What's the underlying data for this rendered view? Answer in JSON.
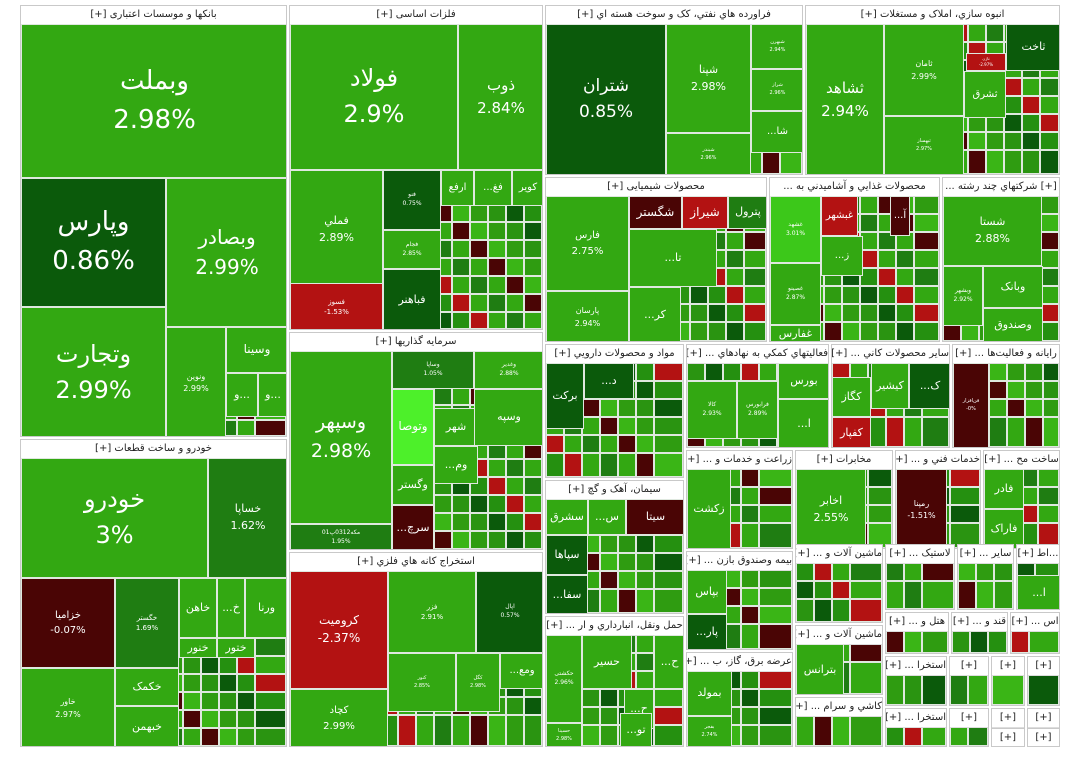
{
  "colors": {
    "up": "#33a812",
    "upLight": "#3cc81a",
    "upDark": "#0b5a0b",
    "upMid": "#1f7d12",
    "down": "#b31212",
    "downDark": "#4a0505",
    "bright": "#4df02a"
  },
  "sectors": [
    {
      "id": "banks",
      "title": "بانکها و موسسات اعتباری [+]",
      "stocks": [
        {
          "name": "وبملت",
          "pct": "2.98%",
          "t": "up"
        },
        {
          "name": "وپارس",
          "pct": "0.86%",
          "t": "upDark"
        },
        {
          "name": "وبصادر",
          "pct": "2.99%",
          "t": "up"
        },
        {
          "name": "وتجارت",
          "pct": "2.99%",
          "t": "up"
        },
        {
          "name": "ونوین",
          "pct": "2.99%",
          "t": "up"
        },
        {
          "name": "وسینا",
          "pct": "",
          "t": "up"
        },
        {
          "name": "و...",
          "pct": "",
          "t": "up"
        },
        {
          "name": "و...",
          "pct": "",
          "t": "up"
        }
      ]
    },
    {
      "id": "metals",
      "title": "فلزات اساسی [+]",
      "stocks": [
        {
          "name": "فولاد",
          "pct": "2.9%",
          "t": "up"
        },
        {
          "name": "ذوب",
          "pct": "2.84%",
          "t": "up"
        },
        {
          "name": "فملي",
          "pct": "2.89%",
          "t": "up"
        },
        {
          "name": "فنو",
          "pct": "0.75%",
          "t": "upDark"
        },
        {
          "name": "ارفع",
          "pct": "",
          "t": "up"
        },
        {
          "name": "...فغ",
          "pct": "",
          "t": "up"
        },
        {
          "name": "کویر",
          "pct": "",
          "t": "up"
        },
        {
          "name": "فجام",
          "pct": "2.85%",
          "t": "up"
        },
        {
          "name": "فسوز",
          "pct": "-1.53%",
          "t": "down"
        },
        {
          "name": "فباهنر",
          "pct": "",
          "t": "upDark"
        }
      ]
    },
    {
      "id": "oil",
      "title": "فراورده هاي نفتي، کک و سوخت هسته اي [+]",
      "stocks": [
        {
          "name": "شتران",
          "pct": "0.85%",
          "t": "upDark"
        },
        {
          "name": "شپنا",
          "pct": "2.98%",
          "t": "up"
        },
        {
          "name": "شبهرن",
          "pct": "2.94%",
          "t": "up"
        },
        {
          "name": "شراز",
          "pct": "2.96%",
          "t": "up"
        },
        {
          "name": "...شا",
          "pct": "",
          "t": "up"
        },
        {
          "name": "شبندر",
          "pct": "2.96%",
          "t": "up"
        }
      ]
    },
    {
      "id": "construction",
      "title": "انبوه سازي، املاک و مستغلات [+]",
      "stocks": [
        {
          "name": "ثشاهد",
          "pct": "2.94%",
          "t": "up"
        },
        {
          "name": "ثاخت",
          "pct": "",
          "t": "upDark"
        },
        {
          "name": "ثامان",
          "pct": "2.99%",
          "t": "up"
        },
        {
          "name": "ثاژن",
          "pct": "-2.97%",
          "t": "down"
        },
        {
          "name": "ثشرق",
          "pct": "",
          "t": "up"
        },
        {
          "name": "ثبهساز",
          "pct": "2.97%",
          "t": "up"
        }
      ]
    },
    {
      "id": "chemicals",
      "title": "محصولات شیمیایی [+]",
      "stocks": [
        {
          "name": "فارس",
          "pct": "2.75%",
          "t": "up"
        },
        {
          "name": "شگستر",
          "pct": "",
          "t": "downDark"
        },
        {
          "name": "شیراز",
          "pct": "",
          "t": "down"
        },
        {
          "name": "پترول",
          "pct": "",
          "t": "upMid"
        },
        {
          "name": "پارسان",
          "pct": "2.94%",
          "t": "up"
        },
        {
          "name": "...تا",
          "pct": "",
          "t": "up"
        },
        {
          "name": "...کر",
          "pct": "",
          "t": "up"
        }
      ]
    },
    {
      "id": "food",
      "title": "محصولات غذايي و آشاميدني به ...",
      "stocks": [
        {
          "name": "غشهد",
          "pct": "3.01%",
          "t": "upLight"
        },
        {
          "name": "غبشهر",
          "pct": "",
          "t": "down"
        },
        {
          "name": "...آ",
          "pct": "",
          "t": "downDark"
        },
        {
          "name": "غصینو",
          "pct": "2.87%",
          "t": "up"
        },
        {
          "name": "...ز",
          "pct": "",
          "t": "up"
        },
        {
          "name": "غفارس",
          "pct": "",
          "t": "up"
        }
      ]
    },
    {
      "id": "multi",
      "title": "[+] شرکتهاي چند رشته ...",
      "stocks": [
        {
          "name": "شستا",
          "pct": "2.88%",
          "t": "up"
        },
        {
          "name": "وبانک",
          "pct": "",
          "t": "up"
        },
        {
          "name": "وبشهر",
          "pct": "2.92%",
          "t": "up"
        },
        {
          "name": "وصندوق",
          "pct": "",
          "t": "up"
        }
      ]
    },
    {
      "id": "pharma",
      "title": "مواد و محصولات دارويي [+]",
      "stocks": [
        {
          "name": "برکت",
          "pct": "",
          "t": "upDark"
        },
        {
          "name": "...د",
          "pct": "",
          "t": "upDark"
        }
      ]
    },
    {
      "id": "aux",
      "title": "فعاليتهاي کمکي به نهادهاي ... [+]",
      "stocks": [
        {
          "name": "بورس",
          "pct": "",
          "t": "up"
        },
        {
          "name": "کالا",
          "pct": "2.93%",
          "t": "up"
        },
        {
          "name": "فرابورس",
          "pct": "2.89%",
          "t": "up"
        },
        {
          "name": "...ا",
          "pct": "",
          "t": "up"
        }
      ]
    },
    {
      "id": "minerals",
      "title": "ساير محصولات کاني ... [+]",
      "stocks": [
        {
          "name": "کگاز",
          "pct": "",
          "t": "up"
        },
        {
          "name": "کیشیر",
          "pct": "",
          "t": "up"
        },
        {
          "name": "...ک",
          "pct": "",
          "t": "upDark"
        },
        {
          "name": "کفپار",
          "pct": "",
          "t": "down"
        }
      ]
    },
    {
      "id": "computer",
      "title": "رايانه و فعاليت‌ها ... [+]",
      "stocks": [
        {
          "name": "فن‌افزار",
          "pct": "-0%",
          "t": "downDark"
        }
      ]
    },
    {
      "id": "brokers",
      "title": "سرمایه گذاریها [+]",
      "stocks": [
        {
          "name": "وسپهر",
          "pct": "2.98%",
          "t": "up"
        },
        {
          "name": "وساپا",
          "pct": "1.05%",
          "t": "upMid"
        },
        {
          "name": "وغدیر",
          "pct": "2.88%",
          "t": "up"
        },
        {
          "name": "وتوصا",
          "pct": "",
          "t": "bright"
        },
        {
          "name": "شهر",
          "pct": "",
          "t": "up"
        },
        {
          "name": "وسپه",
          "pct": "",
          "t": "up"
        },
        {
          "name": "...وم",
          "pct": "",
          "t": "up"
        },
        {
          "name": "وگستر",
          "pct": "",
          "t": "up"
        },
        {
          "name": "مکه0312پ01",
          "pct": "1.95%",
          "t": "upMid"
        },
        {
          "name": "...سرچ",
          "pct": "",
          "t": "downDark"
        }
      ]
    },
    {
      "id": "cars",
      "title": "خودرو و ساخت قطعات [+]",
      "stocks": [
        {
          "name": "خودرو",
          "pct": "3%",
          "t": "up"
        },
        {
          "name": "خساپا",
          "pct": "1.62%",
          "t": "upMid"
        },
        {
          "name": "خزامیا",
          "pct": "-0.07%",
          "t": "downDark"
        },
        {
          "name": "خگستر",
          "pct": "1.69%",
          "t": "upMid"
        },
        {
          "name": "خاهن",
          "pct": "",
          "t": "up"
        },
        {
          "name": "...خ",
          "pct": "",
          "t": "up"
        },
        {
          "name": "ورنا",
          "pct": "",
          "t": "up"
        },
        {
          "name": "خنور",
          "pct": "",
          "t": "up"
        },
        {
          "name": "ختور",
          "pct": "",
          "t": "up"
        },
        {
          "name": "خاور",
          "pct": "2.97%",
          "t": "up"
        },
        {
          "name": "خکمک",
          "pct": "",
          "t": "up"
        },
        {
          "name": "خبهمن",
          "pct": "",
          "t": "up"
        }
      ]
    },
    {
      "id": "mining",
      "title": "استخراج کانه هاي فلزي [+]",
      "stocks": [
        {
          "name": "کرومیت",
          "pct": "-2.37%",
          "t": "down"
        },
        {
          "name": "فزر",
          "pct": "2.91%",
          "t": "up"
        },
        {
          "name": "اپال",
          "pct": "0.57%",
          "t": "upDark"
        },
        {
          "name": "کچاد",
          "pct": "2.99%",
          "t": "up"
        },
        {
          "name": "کنور",
          "pct": "2.85%",
          "t": "up"
        },
        {
          "name": "کگل",
          "pct": "2.98%",
          "t": "up"
        },
        {
          "name": "...ومع",
          "pct": "",
          "t": "up"
        }
      ]
    },
    {
      "id": "cement",
      "title": "سیمان، آهک و گچ [+]",
      "stocks": [
        {
          "name": "سیتا",
          "pct": "",
          "t": "downDark"
        },
        {
          "name": "...س",
          "pct": "",
          "t": "up"
        },
        {
          "name": "سشرق",
          "pct": "",
          "t": "up"
        },
        {
          "name": "سپاها",
          "pct": "",
          "t": "upDark"
        },
        {
          "name": "...سفا",
          "pct": "",
          "t": "upDark"
        }
      ]
    },
    {
      "id": "transport",
      "title": "حمل ونقل، انبارداري و ار ... [+]",
      "stocks": [
        {
          "name": "حسیر",
          "pct": "",
          "t": "up"
        },
        {
          "name": "...ح",
          "pct": "",
          "t": "up"
        },
        {
          "name": "حکشتی",
          "pct": "2.96%",
          "t": "up"
        },
        {
          "name": "...ح",
          "pct": "",
          "t": "up"
        },
        {
          "name": "...تو",
          "pct": "",
          "t": "up"
        },
        {
          "name": "حسینا",
          "pct": "2.98%",
          "t": "up"
        }
      ]
    },
    {
      "id": "agri",
      "title": "زراعت و خدمات و ... [+]",
      "stocks": [
        {
          "name": "زکشت",
          "pct": "",
          "t": "up"
        }
      ]
    },
    {
      "id": "telecom",
      "title": "مخابرات [+]",
      "stocks": [
        {
          "name": "اخابر",
          "pct": "2.55%",
          "t": "up"
        }
      ]
    },
    {
      "id": "engineering",
      "title": "خدمات فني و ... [+]",
      "stocks": [
        {
          "name": "رمپنا",
          "pct": "-1.51%",
          "t": "downDark"
        }
      ]
    },
    {
      "id": "devices",
      "title": "ساخت مح ... [+]",
      "stocks": [
        {
          "name": "فادر",
          "pct": "",
          "t": "up"
        },
        {
          "name": "فاراک",
          "pct": "",
          "t": "up"
        }
      ]
    },
    {
      "id": "insurance",
      "title": "بیمه وصندوق بازن ... [+]",
      "stocks": [
        {
          "name": "بپاس",
          "pct": "",
          "t": "up"
        },
        {
          "name": "...پار",
          "pct": "",
          "t": "upDark"
        }
      ]
    },
    {
      "id": "power",
      "title": "عرضه برق، گاز، ب ... [+]",
      "stocks": [
        {
          "name": "بمولد",
          "pct": "",
          "t": "up"
        },
        {
          "name": "بفجر",
          "pct": "2.74%",
          "t": "up"
        }
      ]
    },
    {
      "id": "machines1",
      "title": "ماشين آلات و ... [+]",
      "stocks": []
    },
    {
      "id": "tires",
      "title": "لاستیک ... [+]",
      "stocks": []
    },
    {
      "id": "other1",
      "title": "ساير ... [+]",
      "stocks": []
    },
    {
      "id": "small1",
      "title": "...اط [+]",
      "stocks": [
        {
          "name": "...ا",
          "pct": "",
          "t": "up"
        }
      ]
    },
    {
      "id": "machines2",
      "title": "ماشين آلات و ... [+]",
      "stocks": [
        {
          "name": "بترانس",
          "pct": "",
          "t": "up"
        }
      ]
    },
    {
      "id": "hotel",
      "title": "هتل و ... [+]",
      "stocks": []
    },
    {
      "id": "sugar",
      "title": "قند و ... [+]",
      "stocks": []
    },
    {
      "id": "as",
      "title": "اس ... [+]",
      "stocks": []
    },
    {
      "id": "tiles",
      "title": "كاشي و سرام ... [+]",
      "stocks": []
    },
    {
      "id": "extract1",
      "title": "استخرا ... [+]",
      "stocks": []
    },
    {
      "id": "extract2",
      "title": "استخرا ... [+]",
      "stocks": []
    },
    {
      "id": "p1",
      "title": "[+]",
      "stocks": []
    },
    {
      "id": "p2",
      "title": "[+]",
      "stocks": []
    },
    {
      "id": "p3",
      "title": "[+]",
      "stocks": []
    },
    {
      "id": "p4",
      "title": "[+]",
      "stocks": []
    },
    {
      "id": "p5",
      "title": "[+]",
      "stocks": []
    },
    {
      "id": "p6",
      "title": "[+]",
      "stocks": []
    },
    {
      "id": "p7",
      "title": "[+]",
      "stocks": []
    },
    {
      "id": "p8",
      "title": "[+]",
      "stocks": []
    }
  ]
}
